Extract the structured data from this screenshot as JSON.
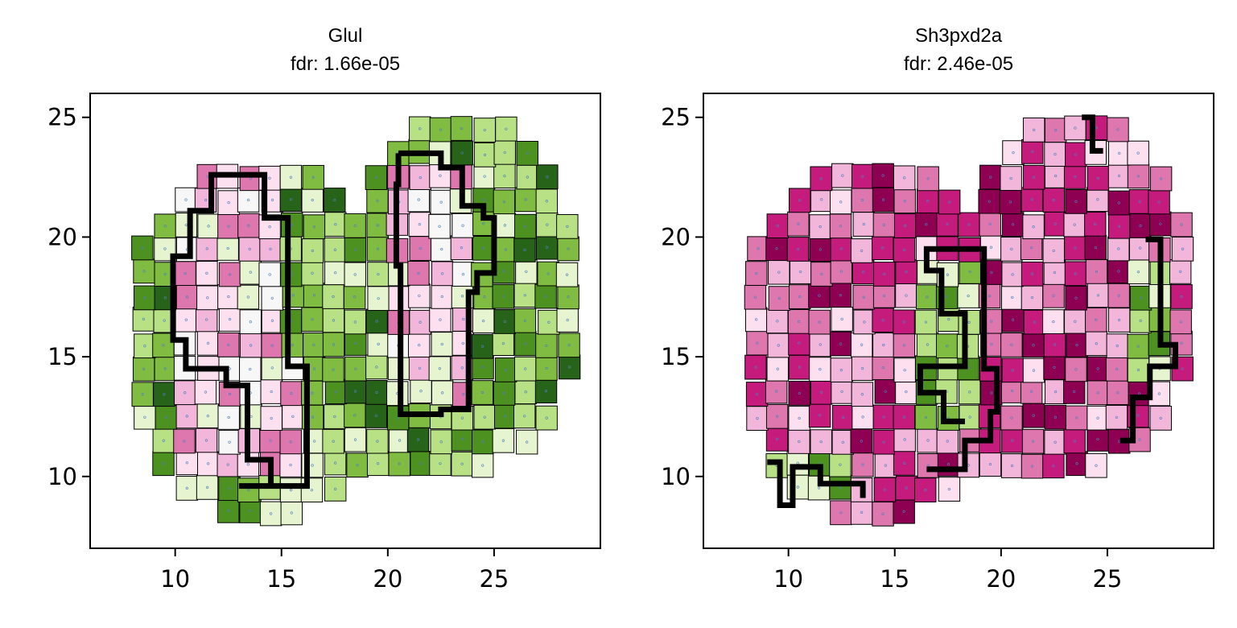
{
  "chart_data": [
    {
      "type": "heatmap",
      "title": "Glul",
      "subtitle": "fdr: 1.66e-05",
      "xlabel": "",
      "ylabel": "",
      "xlim": [
        6,
        30
      ],
      "ylim": [
        7,
        26
      ],
      "xticks": [
        "10",
        "15",
        "20",
        "25"
      ],
      "yticks": [
        "10",
        "15",
        "20",
        "25"
      ],
      "colormap": "PiYG (pink = high, green = low)",
      "grid": false,
      "legend": "none",
      "colors": {
        "high": "#8e0152",
        "mid": "#f7f7f7",
        "low": "#276419"
      },
      "description_of_regions": "two pink (high) vertical domains outlined in black at x≈10–16 and x≈20–24, surrounded by green (low) spots"
    },
    {
      "type": "heatmap",
      "title": "Sh3pxd2a",
      "subtitle": "fdr: 2.46e-05",
      "xlabel": "",
      "ylabel": "",
      "xlim": [
        6,
        30
      ],
      "ylim": [
        7,
        26
      ],
      "xticks": [
        "10",
        "15",
        "20",
        "25"
      ],
      "yticks": [
        "10",
        "15",
        "20",
        "25"
      ],
      "colormap": "PiYG (pink = high, green = low)",
      "grid": false,
      "legend": "none",
      "colors": {
        "high": "#8e0152",
        "mid": "#f7f7f7",
        "low": "#276419"
      },
      "description_of_regions": "mostly magenta (high) tissue; green (low) islands outlined in black near x≈16–19 and right edge x≈26–28"
    }
  ]
}
